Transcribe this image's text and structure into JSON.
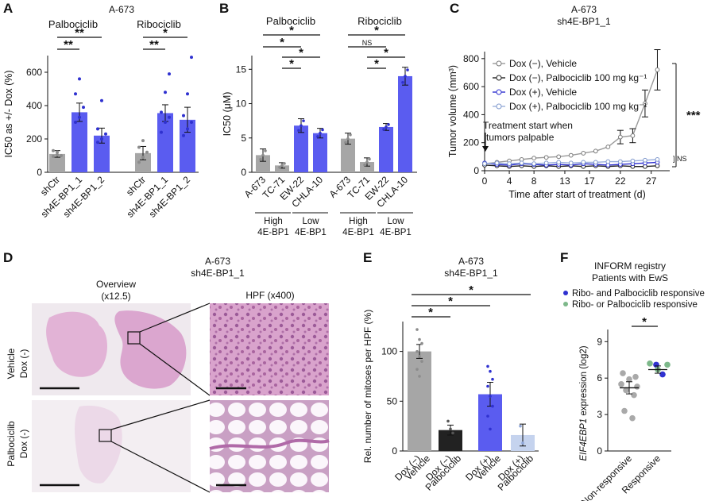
{
  "colors": {
    "gray": "#a6a6a6",
    "grayDark": "#8c8c8c",
    "blue": "#5a5cf0",
    "blueDark": "#2f31d0",
    "black": "#222222",
    "lightBlue": "#c5d3ee",
    "green": "#7db88a",
    "tissuePink": "#e6b6d6",
    "tissueBg": "#efe9ee"
  },
  "panels": {
    "A": {
      "letter": "A",
      "title": "A-673",
      "group1": "Palbociclib",
      "group2": "Ribociclib",
      "sig": [
        "**",
        "**",
        "**",
        "*"
      ]
    },
    "B": {
      "letter": "B",
      "group1": "Palbociclib",
      "group2": "Ribociclib",
      "sig": [
        "*",
        "*",
        "*",
        "*",
        "*",
        "NS",
        "*",
        "*"
      ],
      "high": "High",
      "low": "Low",
      "marker": "4E-BP1"
    },
    "C": {
      "letter": "C",
      "title": "A-673",
      "subtitle": "sh4E-BP1_1",
      "annotation1": "Treatment start when",
      "annotation2": "tumors palpable",
      "sig_main": "***",
      "sig_ns": "NS"
    },
    "D": {
      "letter": "D",
      "title": "A-673",
      "subtitle": "sh4E-BP1_1",
      "overview": "Overview",
      "overview_mag": "(x12.5)",
      "hpf": "HPF (x400)",
      "row1a": "Vehicle",
      "row1b": "Dox (-)",
      "row2a": "Palbociclib",
      "row2b": "Dox (-)"
    },
    "E": {
      "letter": "E",
      "title": "A-673",
      "subtitle": "sh4E-BP1_1",
      "sig": [
        "*",
        "*",
        "*"
      ]
    },
    "F": {
      "letter": "F",
      "title": "INFORM registry",
      "subtitle": "Patients with EwS",
      "legend1": "Ribo- and Palbociclib responsive",
      "legend2": "Ribo- or Palbociclib responsive",
      "sig": "*",
      "ylabel_italic": "EIF4EBP1",
      "ylabel_rest": " expression (log2)"
    }
  },
  "chart_data": [
    {
      "panel": "A",
      "type": "bar",
      "categories": [
        "shCtr",
        "sh4E-BP1_1",
        "sh4E-BP1_2",
        "shCtr",
        "sh4E-BP1_1",
        "sh4E-BP1_2"
      ],
      "values": [
        110,
        360,
        220,
        115,
        355,
        315
      ],
      "errors": [
        20,
        55,
        45,
        40,
        50,
        75
      ],
      "ylabel": "IC50 as +/- Dox (%)",
      "ylim": [
        0,
        700
      ],
      "yticks": [
        0,
        200,
        400,
        600
      ]
    },
    {
      "panel": "B",
      "type": "bar",
      "categories": [
        "A-673",
        "TC-71",
        "EW-22",
        "CHLA-10",
        "A-673",
        "TC-71",
        "EW-22",
        "CHLA-10"
      ],
      "values": [
        2.5,
        1.0,
        6.8,
        5.7,
        4.9,
        1.5,
        6.6,
        14.0
      ],
      "errors": [
        0.9,
        0.4,
        1.0,
        0.7,
        0.8,
        0.6,
        0.5,
        1.3
      ],
      "ylabel": "IC50 (μM)",
      "ylim": [
        0,
        17
      ],
      "yticks": [
        0,
        5,
        10,
        15
      ]
    },
    {
      "panel": "C",
      "type": "line",
      "xlabel": "Time after start of treatment (d)",
      "ylabel": "Tumor volume (mm³)",
      "xticks": [
        0,
        4,
        8,
        13,
        17,
        22,
        27
      ],
      "x": [
        0,
        2,
        4,
        6,
        8,
        10,
        12,
        14,
        16,
        18,
        20,
        22,
        24,
        26,
        28
      ],
      "xlim": [
        0,
        30
      ],
      "ylim": [
        0,
        850
      ],
      "yticks": [
        0,
        200,
        400,
        600,
        800
      ],
      "series": [
        {
          "name": "Dox (−), Vehicle",
          "values": [
            50,
            60,
            70,
            80,
            90,
            95,
            100,
            110,
            125,
            140,
            170,
            240,
            250,
            480,
            720
          ]
        },
        {
          "name": "Dox (−), Palbociclib 100 mg kg⁻¹",
          "values": [
            40,
            35,
            30,
            35,
            30,
            35,
            30,
            35,
            30,
            35,
            30,
            35,
            30,
            30,
            35
          ]
        },
        {
          "name": "Dox (+), Vehicle",
          "values": [
            55,
            45,
            40,
            50,
            45,
            40,
            45,
            40,
            50,
            45,
            40,
            45,
            50,
            55,
            60
          ]
        },
        {
          "name": "Dox (+), Palbociclib 100 mg kg⁻¹",
          "values": [
            50,
            55,
            50,
            55,
            50,
            55,
            60,
            55,
            60,
            60,
            65,
            65,
            70,
            75,
            80
          ]
        }
      ]
    },
    {
      "panel": "E",
      "type": "bar",
      "categories": [
        "Dox (−) Vehicle",
        "Dox (−) Palbociclib",
        "Dox (+) Vehicle",
        "Dox (+) Palbociclib"
      ],
      "values": [
        100,
        21,
        57,
        16
      ],
      "errors": [
        7,
        5,
        12,
        11
      ],
      "ylabel": "Rel. number of mitoses per HPF (%)",
      "ylim": [
        0,
        130
      ],
      "yticks": [
        0,
        50,
        100
      ]
    },
    {
      "panel": "F",
      "type": "scatter",
      "categories": [
        "Non-responsive",
        "Responsive"
      ],
      "means": [
        5.2,
        6.7
      ],
      "errors": [
        0.5,
        0.3
      ],
      "ylim": [
        0,
        10
      ],
      "yticks": [
        0,
        3,
        6,
        9
      ],
      "points": {
        "non_responsive": [
          6.4,
          6.1,
          5.9,
          5.5,
          5.3,
          5.0,
          4.6,
          3.3,
          2.7
        ],
        "responsive_blue": [
          7.1,
          6.3
        ],
        "responsive_green": [
          7.2,
          6.7,
          7.1
        ]
      }
    }
  ]
}
